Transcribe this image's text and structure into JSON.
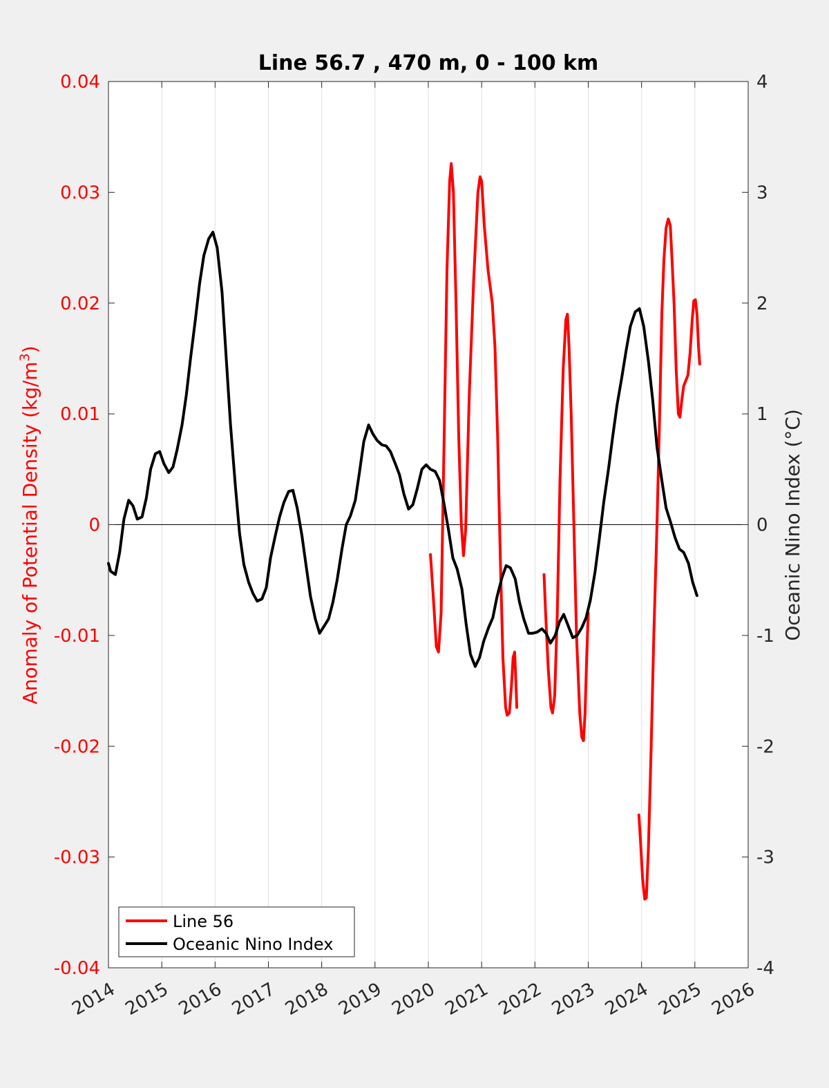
{
  "chart_data": {
    "type": "line",
    "title": "Line 56.7 , 470 m, 0 - 100 km",
    "ylabel_left": "Anomaly of Potential Density (kg/m",
    "ylabel_left_superscript": "3",
    "ylabel_left_close": ")",
    "ylabel_right": "Oceanic Nino Index (°C)",
    "xlim": [
      2014,
      2026
    ],
    "ylim_left": [
      -0.04,
      0.04
    ],
    "ylim_right": [
      -4,
      4
    ],
    "x_ticks": [
      "2014",
      "2015",
      "2016",
      "2017",
      "2018",
      "2019",
      "2020",
      "2021",
      "2022",
      "2023",
      "2024",
      "2025",
      "2026"
    ],
    "y_left_ticks": [
      "-0.04",
      "-0.03",
      "-0.02",
      "-0.01",
      "0",
      "0.01",
      "0.02",
      "0.03",
      "0.04"
    ],
    "y_right_ticks": [
      "-4",
      "-3",
      "-2",
      "-1",
      "0",
      "1",
      "2",
      "3",
      "4"
    ],
    "grid": "vertical",
    "legend_position": "bottom-left",
    "colors": {
      "line56": "#ff0000",
      "oni": "#000000",
      "left_axis": "#ff0000",
      "right_axis": "#262626"
    },
    "series": [
      {
        "name": "Line 56",
        "axis": "left",
        "segments": [
          [
            [
              2020.04,
              -0.0027
            ],
            [
              2020.1,
              -0.007
            ],
            [
              2020.15,
              -0.011
            ],
            [
              2020.19,
              -0.0115
            ],
            [
              2020.24,
              -0.008
            ],
            [
              2020.29,
              0.006
            ],
            [
              2020.35,
              0.023
            ],
            [
              2020.4,
              0.031
            ],
            [
              2020.43,
              0.0326
            ],
            [
              2020.47,
              0.03
            ],
            [
              2020.52,
              0.02
            ],
            [
              2020.57,
              0.008
            ],
            [
              2020.62,
              0.0
            ],
            [
              2020.66,
              -0.0028
            ],
            [
              2020.7,
              -0.0005
            ],
            [
              2020.77,
              0.012
            ],
            [
              2020.85,
              0.022
            ],
            [
              2020.93,
              0.03
            ],
            [
              2020.97,
              0.0314
            ],
            [
              2021.0,
              0.031
            ],
            [
              2021.05,
              0.027
            ],
            [
              2021.12,
              0.023
            ],
            [
              2021.2,
              0.02
            ],
            [
              2021.25,
              0.016
            ],
            [
              2021.3,
              0.008
            ],
            [
              2021.35,
              -0.003
            ],
            [
              2021.4,
              -0.012
            ],
            [
              2021.45,
              -0.0165
            ],
            [
              2021.48,
              -0.0172
            ],
            [
              2021.52,
              -0.017
            ],
            [
              2021.56,
              -0.0145
            ],
            [
              2021.59,
              -0.012
            ],
            [
              2021.62,
              -0.0115
            ],
            [
              2021.64,
              -0.014
            ],
            [
              2021.66,
              -0.0165
            ]
          ],
          [
            [
              2022.17,
              -0.0045
            ],
            [
              2022.2,
              -0.008
            ],
            [
              2022.25,
              -0.013
            ],
            [
              2022.3,
              -0.0165
            ],
            [
              2022.33,
              -0.017
            ],
            [
              2022.37,
              -0.0155
            ],
            [
              2022.42,
              -0.008
            ],
            [
              2022.47,
              0.004
            ],
            [
              2022.53,
              0.014
            ],
            [
              2022.58,
              0.0185
            ],
            [
              2022.61,
              0.019
            ],
            [
              2022.64,
              0.016
            ],
            [
              2022.68,
              0.01
            ],
            [
              2022.73,
              0.0
            ],
            [
              2022.78,
              -0.01
            ],
            [
              2022.84,
              -0.017
            ],
            [
              2022.88,
              -0.0192
            ],
            [
              2022.91,
              -0.0195
            ],
            [
              2022.94,
              -0.017
            ],
            [
              2022.97,
              -0.012
            ],
            [
              2023.0,
              -0.008
            ]
          ],
          [
            [
              2023.95,
              -0.0262
            ],
            [
              2023.98,
              -0.0285
            ],
            [
              2024.02,
              -0.032
            ],
            [
              2024.06,
              -0.0338
            ],
            [
              2024.09,
              -0.0337
            ],
            [
              2024.13,
              -0.029
            ],
            [
              2024.18,
              -0.02
            ],
            [
              2024.23,
              -0.01
            ],
            [
              2024.29,
              0.0
            ],
            [
              2024.34,
              0.01
            ],
            [
              2024.38,
              0.019
            ],
            [
              2024.42,
              0.024
            ],
            [
              2024.46,
              0.0268
            ],
            [
              2024.5,
              0.0276
            ],
            [
              2024.54,
              0.027
            ],
            [
              2024.57,
              0.024
            ],
            [
              2024.61,
              0.02
            ],
            [
              2024.65,
              0.014
            ],
            [
              2024.69,
              0.01
            ],
            [
              2024.72,
              0.0097
            ],
            [
              2024.75,
              0.011
            ],
            [
              2024.79,
              0.0125
            ],
            [
              2024.83,
              0.013
            ],
            [
              2024.87,
              0.0135
            ],
            [
              2024.91,
              0.0155
            ],
            [
              2024.95,
              0.0185
            ],
            [
              2024.98,
              0.0202
            ],
            [
              2025.01,
              0.0203
            ],
            [
              2025.04,
              0.019
            ],
            [
              2025.07,
              0.016
            ],
            [
              2025.09,
              0.0145
            ]
          ]
        ]
      },
      {
        "name": "Oceanic Nino Index",
        "axis": "right",
        "segments": [
          [
            [
              2014.0,
              -0.35
            ],
            [
              2014.04,
              -0.42
            ],
            [
              2014.13,
              -0.45
            ],
            [
              2014.21,
              -0.25
            ],
            [
              2014.29,
              0.05
            ],
            [
              2014.38,
              0.22
            ],
            [
              2014.46,
              0.17
            ],
            [
              2014.54,
              0.05
            ],
            [
              2014.63,
              0.07
            ],
            [
              2014.71,
              0.24
            ],
            [
              2014.79,
              0.5
            ],
            [
              2014.88,
              0.64
            ],
            [
              2014.96,
              0.66
            ],
            [
              2015.04,
              0.55
            ],
            [
              2015.13,
              0.47
            ],
            [
              2015.21,
              0.52
            ],
            [
              2015.29,
              0.68
            ],
            [
              2015.38,
              0.9
            ],
            [
              2015.46,
              1.17
            ],
            [
              2015.54,
              1.5
            ],
            [
              2015.63,
              1.85
            ],
            [
              2015.71,
              2.18
            ],
            [
              2015.79,
              2.43
            ],
            [
              2015.88,
              2.58
            ],
            [
              2015.96,
              2.64
            ],
            [
              2016.04,
              2.5
            ],
            [
              2016.13,
              2.1
            ],
            [
              2016.21,
              1.5
            ],
            [
              2016.29,
              0.9
            ],
            [
              2016.38,
              0.35
            ],
            [
              2016.46,
              -0.08
            ],
            [
              2016.54,
              -0.36
            ],
            [
              2016.63,
              -0.52
            ],
            [
              2016.71,
              -0.62
            ],
            [
              2016.79,
              -0.69
            ],
            [
              2016.88,
              -0.67
            ],
            [
              2016.96,
              -0.57
            ],
            [
              2017.04,
              -0.3
            ],
            [
              2017.13,
              -0.1
            ],
            [
              2017.21,
              0.07
            ],
            [
              2017.29,
              0.2
            ],
            [
              2017.38,
              0.3
            ],
            [
              2017.46,
              0.31
            ],
            [
              2017.54,
              0.15
            ],
            [
              2017.63,
              -0.1
            ],
            [
              2017.71,
              -0.38
            ],
            [
              2017.79,
              -0.65
            ],
            [
              2017.88,
              -0.85
            ],
            [
              2017.96,
              -0.98
            ],
            [
              2018.04,
              -0.92
            ],
            [
              2018.13,
              -0.85
            ],
            [
              2018.21,
              -0.7
            ],
            [
              2018.29,
              -0.5
            ],
            [
              2018.38,
              -0.22
            ],
            [
              2018.46,
              0.0
            ],
            [
              2018.54,
              0.08
            ],
            [
              2018.63,
              0.22
            ],
            [
              2018.71,
              0.48
            ],
            [
              2018.79,
              0.75
            ],
            [
              2018.88,
              0.9
            ],
            [
              2018.96,
              0.82
            ],
            [
              2019.04,
              0.76
            ],
            [
              2019.13,
              0.72
            ],
            [
              2019.21,
              0.71
            ],
            [
              2019.29,
              0.66
            ],
            [
              2019.38,
              0.55
            ],
            [
              2019.46,
              0.45
            ],
            [
              2019.54,
              0.28
            ],
            [
              2019.63,
              0.14
            ],
            [
              2019.71,
              0.18
            ],
            [
              2019.79,
              0.32
            ],
            [
              2019.88,
              0.5
            ],
            [
              2019.96,
              0.54
            ],
            [
              2020.04,
              0.5
            ],
            [
              2020.13,
              0.48
            ],
            [
              2020.21,
              0.4
            ],
            [
              2020.29,
              0.2
            ],
            [
              2020.38,
              -0.05
            ],
            [
              2020.46,
              -0.3
            ],
            [
              2020.54,
              -0.4
            ],
            [
              2020.63,
              -0.58
            ],
            [
              2020.71,
              -0.9
            ],
            [
              2020.79,
              -1.17
            ],
            [
              2020.88,
              -1.28
            ],
            [
              2020.96,
              -1.2
            ],
            [
              2021.04,
              -1.05
            ],
            [
              2021.13,
              -0.93
            ],
            [
              2021.21,
              -0.84
            ],
            [
              2021.29,
              -0.65
            ],
            [
              2021.38,
              -0.48
            ],
            [
              2021.46,
              -0.37
            ],
            [
              2021.54,
              -0.39
            ],
            [
              2021.63,
              -0.49
            ],
            [
              2021.71,
              -0.7
            ],
            [
              2021.79,
              -0.85
            ],
            [
              2021.88,
              -0.98
            ],
            [
              2021.96,
              -0.98
            ],
            [
              2022.04,
              -0.97
            ],
            [
              2022.13,
              -0.94
            ],
            [
              2022.21,
              -0.98
            ],
            [
              2022.29,
              -1.07
            ],
            [
              2022.38,
              -1.0
            ],
            [
              2022.46,
              -0.88
            ],
            [
              2022.54,
              -0.81
            ],
            [
              2022.63,
              -0.92
            ],
            [
              2022.71,
              -1.02
            ],
            [
              2022.79,
              -1.0
            ],
            [
              2022.88,
              -0.93
            ],
            [
              2022.96,
              -0.84
            ],
            [
              2023.04,
              -0.68
            ],
            [
              2023.13,
              -0.42
            ],
            [
              2023.21,
              -0.12
            ],
            [
              2023.29,
              0.2
            ],
            [
              2023.38,
              0.5
            ],
            [
              2023.46,
              0.8
            ],
            [
              2023.54,
              1.08
            ],
            [
              2023.63,
              1.33
            ],
            [
              2023.71,
              1.57
            ],
            [
              2023.79,
              1.79
            ],
            [
              2023.88,
              1.92
            ],
            [
              2023.96,
              1.95
            ],
            [
              2024.04,
              1.79
            ],
            [
              2024.13,
              1.47
            ],
            [
              2024.21,
              1.12
            ],
            [
              2024.29,
              0.7
            ],
            [
              2024.38,
              0.4
            ],
            [
              2024.46,
              0.15
            ],
            [
              2024.54,
              0.03
            ],
            [
              2024.63,
              -0.12
            ],
            [
              2024.71,
              -0.22
            ],
            [
              2024.79,
              -0.25
            ],
            [
              2024.88,
              -0.35
            ],
            [
              2024.96,
              -0.52
            ],
            [
              2025.04,
              -0.64
            ]
          ]
        ]
      }
    ]
  }
}
